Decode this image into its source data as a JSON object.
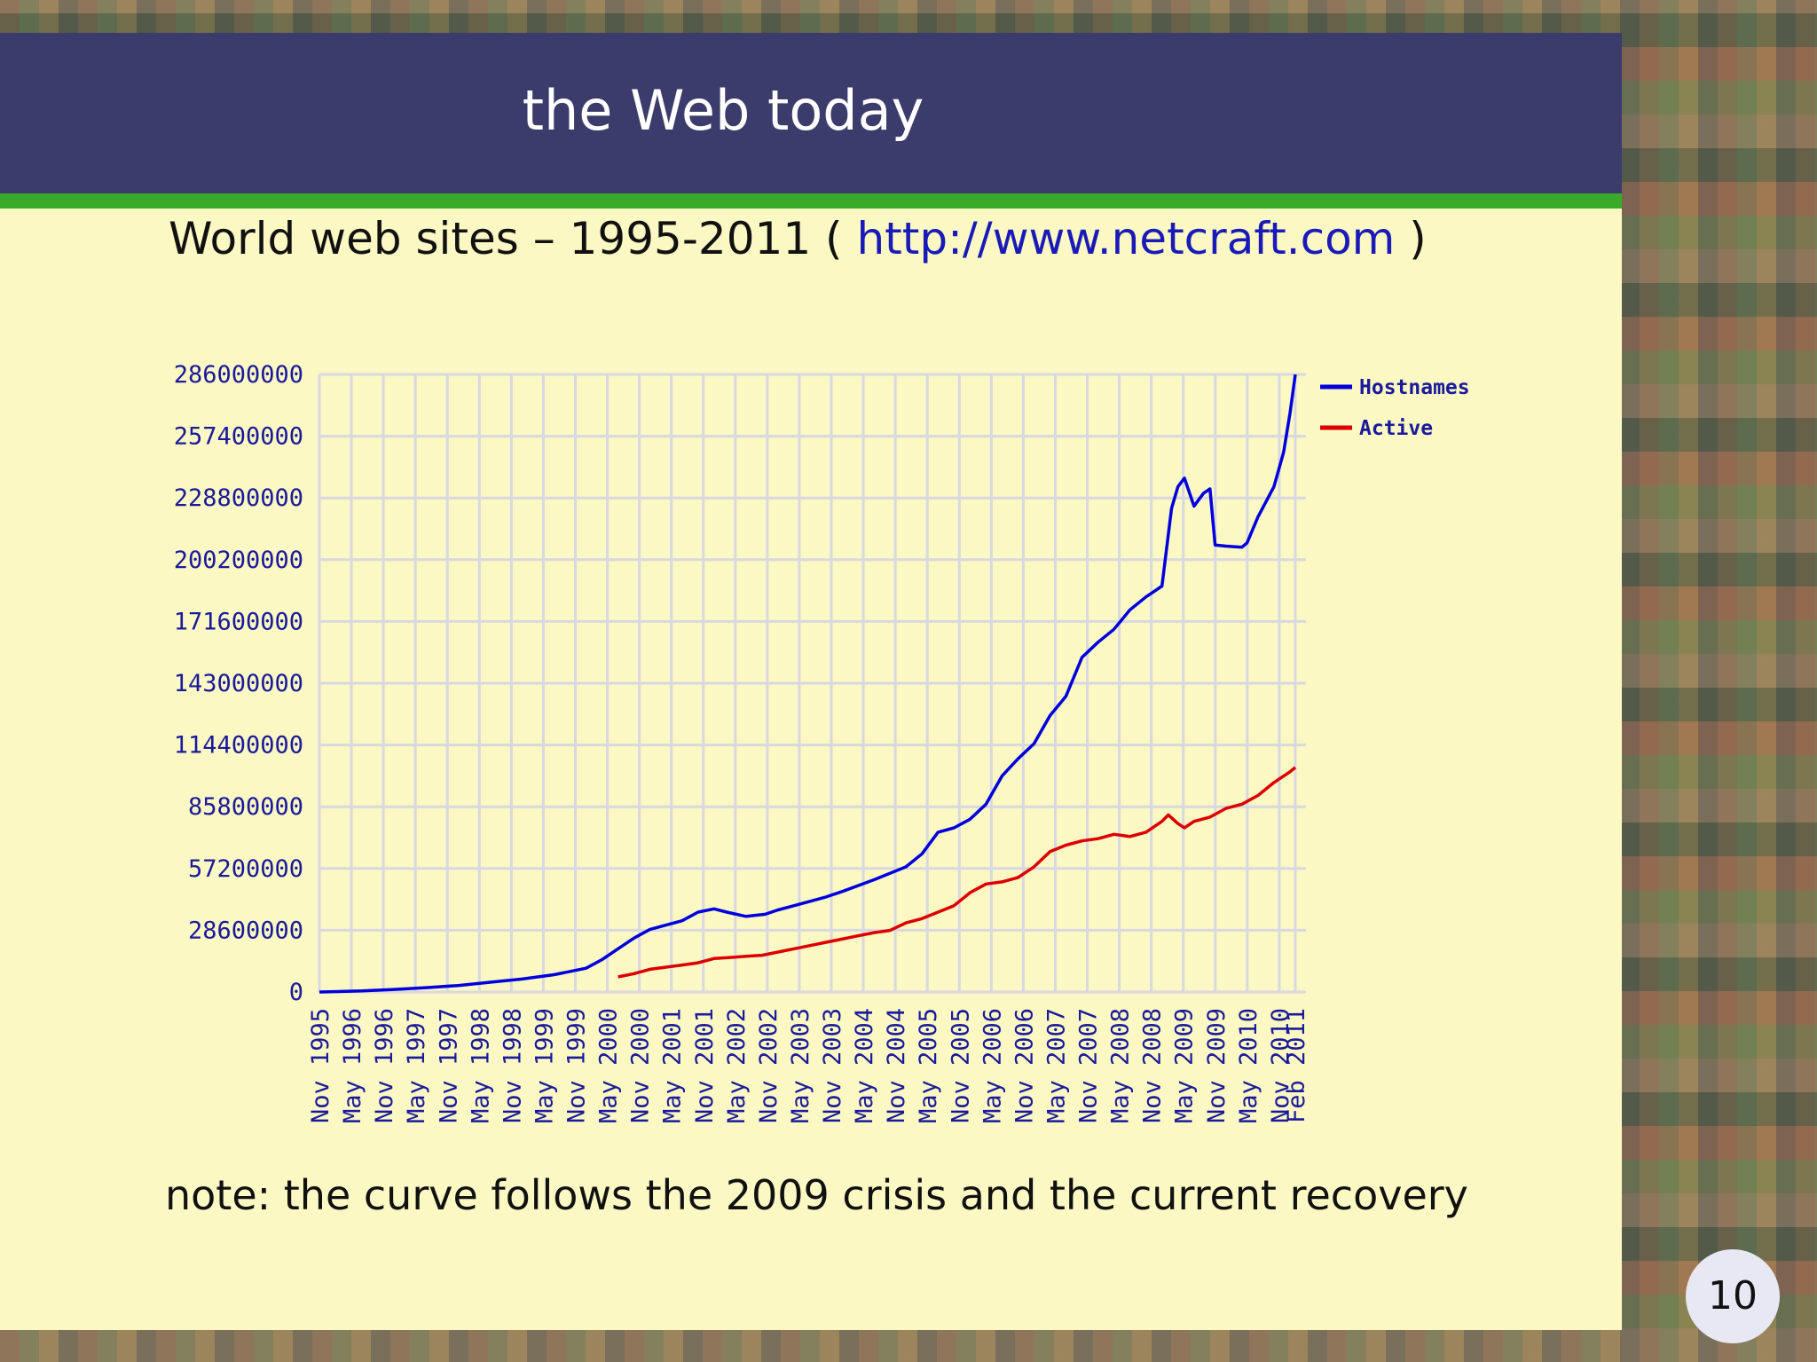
{
  "slide": {
    "title": "the Web today",
    "subtitle_prefix": "World web sites – 1995-2011 (",
    "subtitle_link": "http://www.netcraft.com",
    "subtitle_suffix": ")",
    "note": "note: the curve follows the 2009 crisis and the current recovery",
    "page_number": "10"
  },
  "colors": {
    "header": "#3c3c6c",
    "stripe": "#3aaa2a",
    "background": "#fbf8c4",
    "hostnames": "#0000dd",
    "active": "#dd0000",
    "grid": "#d8d8e0",
    "axis_text": "#1a1a9a"
  },
  "chart_data": {
    "type": "line",
    "title": "World web sites – 1995-2011",
    "ylim": [
      0,
      286000000
    ],
    "yticks": [
      0,
      28600000,
      57200000,
      85800000,
      114400000,
      143000000,
      171600000,
      200200000,
      228800000,
      257400000,
      286000000
    ],
    "ytick_labels": [
      "0",
      "28600000",
      "57200000",
      "85800000",
      "114400000",
      "143000000",
      "171600000",
      "200200000",
      "228800000",
      "257400000",
      "286000000"
    ],
    "xlim": [
      1995.833,
      2011.25
    ],
    "xtick_labels": [
      "Nov 1995",
      "May 1996",
      "Nov 1996",
      "May 1997",
      "Nov 1997",
      "May 1998",
      "Nov 1998",
      "May 1999",
      "Nov 1999",
      "May 2000",
      "Nov 2000",
      "May 2001",
      "Nov 2001",
      "May 2002",
      "Nov 2002",
      "May 2003",
      "Nov 2003",
      "May 2004",
      "Nov 2004",
      "May 2005",
      "Nov 2005",
      "May 2006",
      "Nov 2006",
      "May 2007",
      "Nov 2007",
      "May 2008",
      "Nov 2008",
      "May 2009",
      "Nov 2009",
      "May 2010",
      "Nov 2010",
      "Feb 2011"
    ],
    "xtick_values": [
      1995.833,
      1996.333,
      1996.833,
      1997.333,
      1997.833,
      1998.333,
      1998.833,
      1999.333,
      1999.833,
      2000.333,
      2000.833,
      2001.333,
      2001.833,
      2002.333,
      2002.833,
      2003.333,
      2003.833,
      2004.333,
      2004.833,
      2005.333,
      2005.833,
      2006.333,
      2006.833,
      2007.333,
      2007.833,
      2008.333,
      2008.833,
      2009.333,
      2009.833,
      2010.333,
      2010.833,
      2011.083
    ],
    "grid": true,
    "legend_position": "top-right",
    "series": [
      {
        "name": "Hostnames",
        "x": [
          1995.833,
          1996.5,
          1997.0,
          1997.5,
          1998.0,
          1998.5,
          1999.0,
          1999.5,
          2000.0,
          2000.25,
          2000.5,
          2000.75,
          2001.0,
          2001.25,
          2001.5,
          2001.75,
          2002.0,
          2002.2,
          2002.5,
          2002.8,
          2003.0,
          2003.25,
          2003.5,
          2003.75,
          2004.0,
          2004.5,
          2005.0,
          2005.25,
          2005.5,
          2005.75,
          2006.0,
          2006.25,
          2006.5,
          2006.75,
          2007.0,
          2007.25,
          2007.5,
          2007.75,
          2008.0,
          2008.25,
          2008.5,
          2008.75,
          2008.9,
          2009.0,
          2009.15,
          2009.25,
          2009.35,
          2009.5,
          2009.65,
          2009.75,
          2009.83,
          2010.0,
          2010.25,
          2010.33,
          2010.5,
          2010.75,
          2010.9,
          2011.0,
          2011.083
        ],
        "values": [
          0,
          500000,
          1200000,
          2000000,
          3000000,
          4500000,
          6000000,
          8000000,
          11000000,
          15000000,
          20000000,
          25000000,
          29000000,
          31000000,
          33000000,
          37000000,
          38500000,
          37000000,
          35000000,
          36000000,
          38000000,
          40000000,
          42000000,
          44000000,
          46500000,
          52000000,
          58000000,
          64000000,
          74000000,
          76000000,
          80000000,
          87000000,
          100000000,
          108000000,
          115000000,
          128000000,
          137000000,
          155000000,
          162000000,
          168000000,
          177000000,
          183000000,
          186000000,
          188000000,
          224000000,
          234000000,
          238000000,
          225000000,
          231000000,
          233000000,
          207000000,
          206500000,
          206000000,
          208000000,
          220000000,
          234000000,
          250000000,
          268000000,
          286000000
        ]
      },
      {
        "name": "Active",
        "x": [
          2000.5,
          2000.75,
          2001.0,
          2001.25,
          2001.5,
          2001.75,
          2002.0,
          2002.25,
          2002.5,
          2002.75,
          2003.0,
          2003.25,
          2003.5,
          2003.75,
          2004.0,
          2004.25,
          2004.5,
          2004.75,
          2005.0,
          2005.25,
          2005.5,
          2005.75,
          2006.0,
          2006.25,
          2006.5,
          2006.75,
          2007.0,
          2007.25,
          2007.5,
          2007.75,
          2008.0,
          2008.25,
          2008.5,
          2008.75,
          2009.0,
          2009.1,
          2009.25,
          2009.35,
          2009.5,
          2009.75,
          2010.0,
          2010.25,
          2010.5,
          2010.75,
          2011.0,
          2011.083
        ],
        "values": [
          7000000,
          8500000,
          10500000,
          11500000,
          12500000,
          13500000,
          15500000,
          16000000,
          16500000,
          17000000,
          18500000,
          20000000,
          21500000,
          23000000,
          24500000,
          26000000,
          27500000,
          28500000,
          32000000,
          34000000,
          37000000,
          40000000,
          46000000,
          50000000,
          51000000,
          53000000,
          58000000,
          65000000,
          68000000,
          70000000,
          71000000,
          73000000,
          72000000,
          74000000,
          79000000,
          82000000,
          78000000,
          76000000,
          79000000,
          81000000,
          85000000,
          87000000,
          91000000,
          97000000,
          102000000,
          104000000
        ]
      }
    ]
  }
}
